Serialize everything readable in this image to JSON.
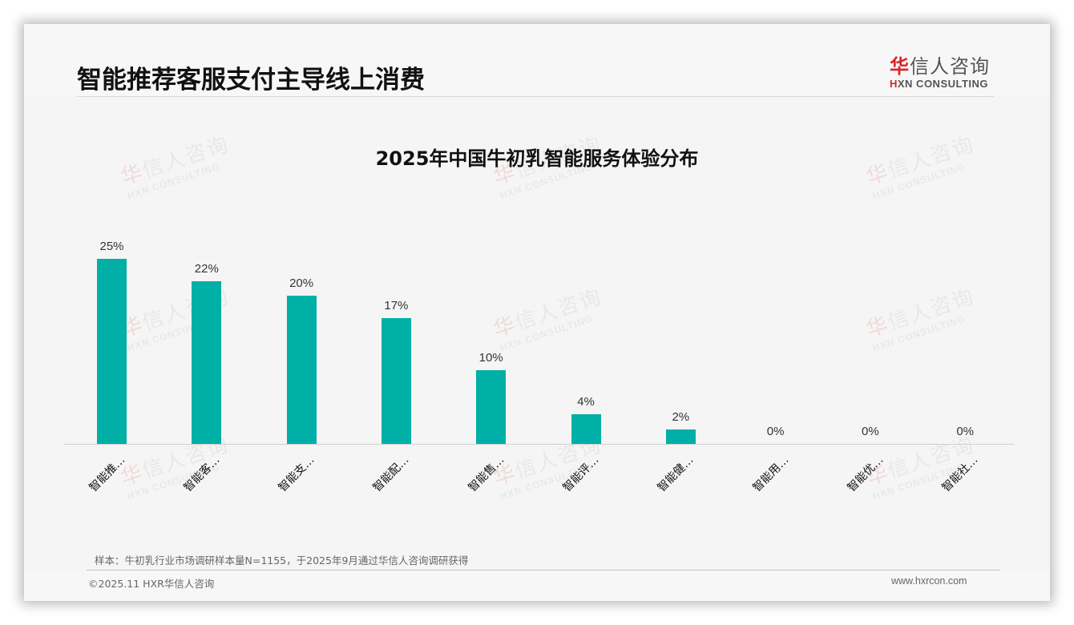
{
  "header": {
    "title": "智能推荐客服支付主导线上消费",
    "logo": {
      "cn_red": "华",
      "cn_rest": "信人咨询",
      "en_red": "H",
      "en_rest": "XN CONSULTING"
    }
  },
  "watermark": {
    "cn_red": "华",
    "cn_rest": "信人咨询",
    "en": "HXN CONSULTING"
  },
  "chart_data": {
    "type": "bar",
    "title": "2025年中国牛初乳智能服务体验分布",
    "categories": [
      "智能推…",
      "智能客…",
      "智能支…",
      "智能配…",
      "智能售…",
      "智能评…",
      "智能健…",
      "智能用…",
      "智能优…",
      "智能社…"
    ],
    "values": [
      25,
      22,
      20,
      17,
      10,
      4,
      2,
      0,
      0,
      0
    ],
    "value_labels": [
      "25%",
      "22%",
      "20%",
      "17%",
      "10%",
      "4%",
      "2%",
      "0%",
      "0%",
      "0%"
    ],
    "xlabel": "",
    "ylabel": "",
    "ylim": [
      0,
      25
    ],
    "grid": false,
    "legend": "none",
    "bar_color": "#00afa5"
  },
  "footer": {
    "source": "样本：牛初乳行业市场调研样本量N=1155，于2025年9月通过华信人咨询调研获得",
    "copyright": "©2025.11 HXR华信人咨询",
    "website": "www.hxrcon.com"
  }
}
